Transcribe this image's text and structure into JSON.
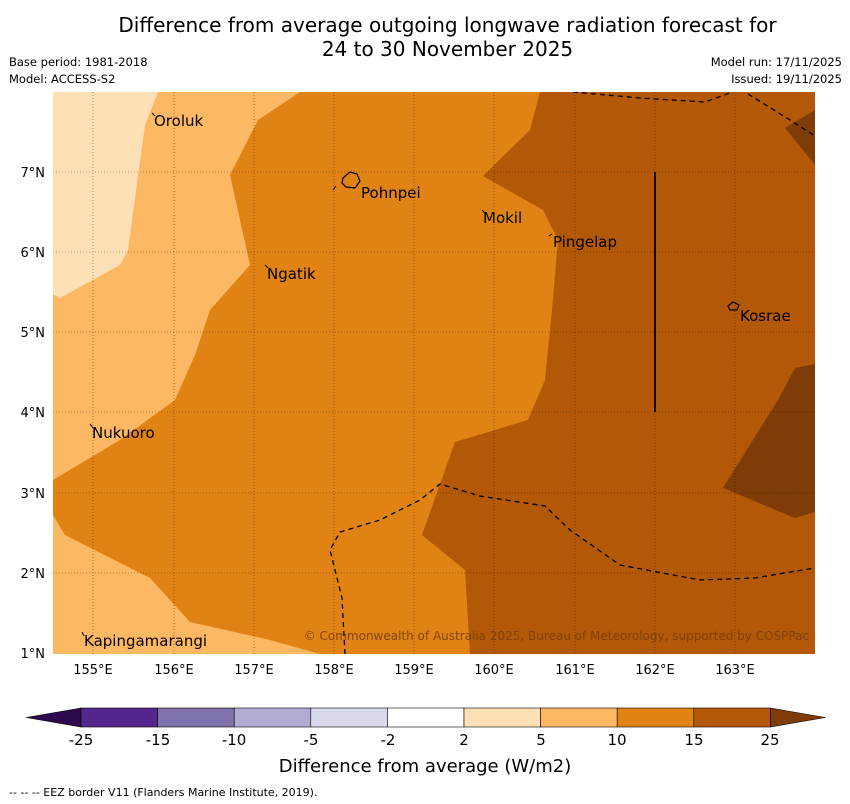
{
  "header": {
    "title_line1": "Difference from average outgoing longwave radiation forecast for",
    "title_line2": "24 to 30 November 2025",
    "base_period": "Base period: 1981-2018",
    "model": "Model: ACCESS-S2",
    "model_run": "Model run: 17/11/2025",
    "issued": "Issued: 19/11/2025"
  },
  "map": {
    "lat_labels": [
      "1°N",
      "2°N",
      "3°N",
      "4°N",
      "5°N",
      "6°N",
      "7°N"
    ],
    "lon_labels": [
      "155°E",
      "156°E",
      "157°E",
      "158°E",
      "159°E",
      "160°E",
      "161°E",
      "162°E",
      "163°E"
    ],
    "places": [
      {
        "name": "Oroluk"
      },
      {
        "name": "Pohnpei"
      },
      {
        "name": "Mokil"
      },
      {
        "name": "Pingelap"
      },
      {
        "name": "Ngatik"
      },
      {
        "name": "Kosrae"
      },
      {
        "name": "Nukuoro"
      },
      {
        "name": "Kapingamarangi"
      }
    ],
    "copyright": "© Commonwealth of Australia 2025, Bureau of Meteorology, supported by COSPPac"
  },
  "legend": {
    "ticks": [
      "-25",
      "-15",
      "-10",
      "-5",
      "-2",
      "2",
      "5",
      "10",
      "15",
      "25"
    ],
    "colors": [
      "#2d0a4e",
      "#54278f",
      "#8073ac",
      "#b2abd2",
      "#d8daeb",
      "#ffffff",
      "#fee0b6",
      "#fdb863",
      "#e08214",
      "#b35806",
      "#7f3b08"
    ],
    "label": "Difference from average (W/m2)"
  },
  "footer": {
    "eez_note": "--  --  -- EEZ border V11 (Flanders Marine Institute, 2019)."
  }
}
